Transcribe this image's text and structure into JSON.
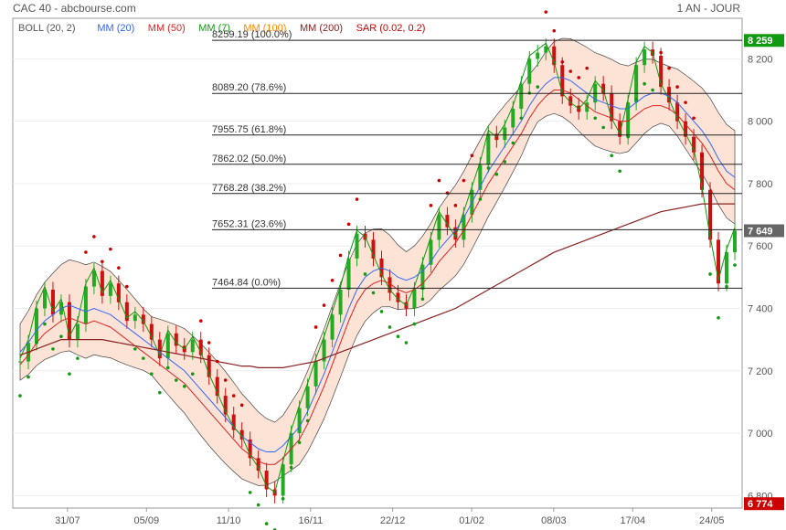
{
  "header": {
    "title": "CAC 40 - abcbourse.com",
    "period": "1 AN - JOUR"
  },
  "colors": {
    "boll": "#555555",
    "mm20": "#3366ff",
    "mm50": "#dd2222",
    "mm7": "#119911",
    "mm100": "#ff8800",
    "mm200": "#882222",
    "sar": "#cc0000",
    "up": "#22aa22",
    "down": "#cc1111",
    "band": "#fde3d6"
  },
  "legend": [
    {
      "label": "BOLL (20, 2)",
      "color": "#555555"
    },
    {
      "label": "MM (20)",
      "color": "#3366ff"
    },
    {
      "label": "MM (50)",
      "color": "#dd2222"
    },
    {
      "label": "MM (7)",
      "color": "#119911"
    },
    {
      "label": "MM (100)",
      "color": "#ff8800"
    },
    {
      "label": "MM (200)",
      "color": "#882222"
    },
    {
      "label": "SAR (0.02, 0.2)",
      "color": "#cc0000"
    }
  ],
  "chart_data": {
    "type": "line",
    "title": "CAC 40",
    "ylim": [
      6760,
      8330
    ],
    "y_ticks": [
      "8 200",
      "8 000",
      "7 800",
      "7 600",
      "7 400",
      "7 200",
      "7 000",
      "6 800"
    ],
    "y_tick_values": [
      8200,
      8000,
      7800,
      7600,
      7400,
      7200,
      7000,
      6800
    ],
    "x_ticks": [
      "31/07",
      "05/09",
      "11/10",
      "16/11",
      "22/12",
      "01/02",
      "08/03",
      "17/04",
      "24/05"
    ],
    "x_tick_positions": [
      0.09,
      0.22,
      0.355,
      0.49,
      0.625,
      0.755,
      0.89,
      1.02,
      1.15
    ],
    "fibonacci": [
      {
        "label": "8259.19  (100.0%)",
        "value": 8259.19
      },
      {
        "label": "8089.20  (78.6%)",
        "value": 8089.2
      },
      {
        "label": "7955.75  (61.8%)",
        "value": 7955.75
      },
      {
        "label": "7862.02  (50.0%)",
        "value": 7862.02
      },
      {
        "label": "7768.28  (38.2%)",
        "value": 7768.28
      },
      {
        "label": "7652.31  (23.6%)",
        "value": 7652.31
      },
      {
        "label": "7464.84  (0.0%)",
        "value": 7464.84
      }
    ],
    "tags": [
      {
        "label": "8 259",
        "value": 8259,
        "color": "#119911"
      },
      {
        "label": "7 649",
        "value": 7649,
        "color": "#666666"
      },
      {
        "label": "6 774",
        "value": 6774,
        "color": "#cc0000"
      }
    ],
    "close_series": [
      7230,
      7290,
      7400,
      7460,
      7380,
      7420,
      7300,
      7350,
      7470,
      7520,
      7440,
      7480,
      7420,
      7360,
      7380,
      7350,
      7300,
      7240,
      7320,
      7280,
      7260,
      7300,
      7250,
      7180,
      7120,
      7060,
      7010,
      6980,
      6920,
      6880,
      6820,
      6800,
      6900,
      7000,
      7080,
      7150,
      7230,
      7300,
      7380,
      7460,
      7560,
      7640,
      7620,
      7560,
      7500,
      7450,
      7420,
      7400,
      7460,
      7540,
      7620,
      7700,
      7660,
      7620,
      7700,
      7780,
      7860,
      7960,
      7940,
      7980,
      8040,
      8120,
      8200,
      8220,
      8240,
      8180,
      8080,
      8050,
      8030,
      8060,
      8120,
      8090,
      8000,
      7950,
      8060,
      8180,
      8230,
      8210,
      8110,
      8060,
      8000,
      7950,
      7900,
      7780,
      7620,
      7480,
      7580,
      7649
    ],
    "mm20": [
      7260,
      7290,
      7330,
      7360,
      7380,
      7400,
      7410,
      7400,
      7390,
      7400,
      7390,
      7380,
      7360,
      7340,
      7320,
      7300,
      7280,
      7260,
      7240,
      7220,
      7200,
      7170,
      7140,
      7110,
      7080,
      7050,
      7020,
      6990,
      6970,
      6950,
      6940,
      6940,
      6960,
      6990,
      7020,
      7070,
      7130,
      7190,
      7260,
      7330,
      7400,
      7460,
      7500,
      7520,
      7530,
      7520,
      7500,
      7490,
      7500,
      7520,
      7550,
      7590,
      7620,
      7650,
      7690,
      7740,
      7790,
      7840,
      7880,
      7920,
      7960,
      8000,
      8050,
      8090,
      8120,
      8140,
      8140,
      8130,
      8110,
      8090,
      8070,
      8060,
      8050,
      8040,
      8040,
      8060,
      8080,
      8090,
      8090,
      8080,
      8060,
      8030,
      8000,
      7970,
      7930,
      7880,
      7840,
      7820
    ],
    "mm200": [
      7250,
      7260,
      7270,
      7280,
      7290,
      7300,
      7300,
      7300,
      7300,
      7300,
      7300,
      7295,
      7290,
      7285,
      7280,
      7275,
      7270,
      7265,
      7260,
      7255,
      7250,
      7245,
      7240,
      7235,
      7230,
      7225,
      7220,
      7215,
      7215,
      7210,
      7210,
      7210,
      7210,
      7215,
      7220,
      7225,
      7230,
      7240,
      7250,
      7260,
      7270,
      7280,
      7290,
      7300,
      7310,
      7320,
      7330,
      7340,
      7350,
      7360,
      7370,
      7380,
      7390,
      7400,
      7415,
      7430,
      7445,
      7460,
      7475,
      7490,
      7505,
      7520,
      7535,
      7550,
      7565,
      7580,
      7590,
      7600,
      7610,
      7620,
      7630,
      7640,
      7650,
      7660,
      7670,
      7680,
      7690,
      7700,
      7710,
      7715,
      7720,
      7725,
      7730,
      7735,
      7735,
      7735,
      7735,
      7735
    ]
  }
}
